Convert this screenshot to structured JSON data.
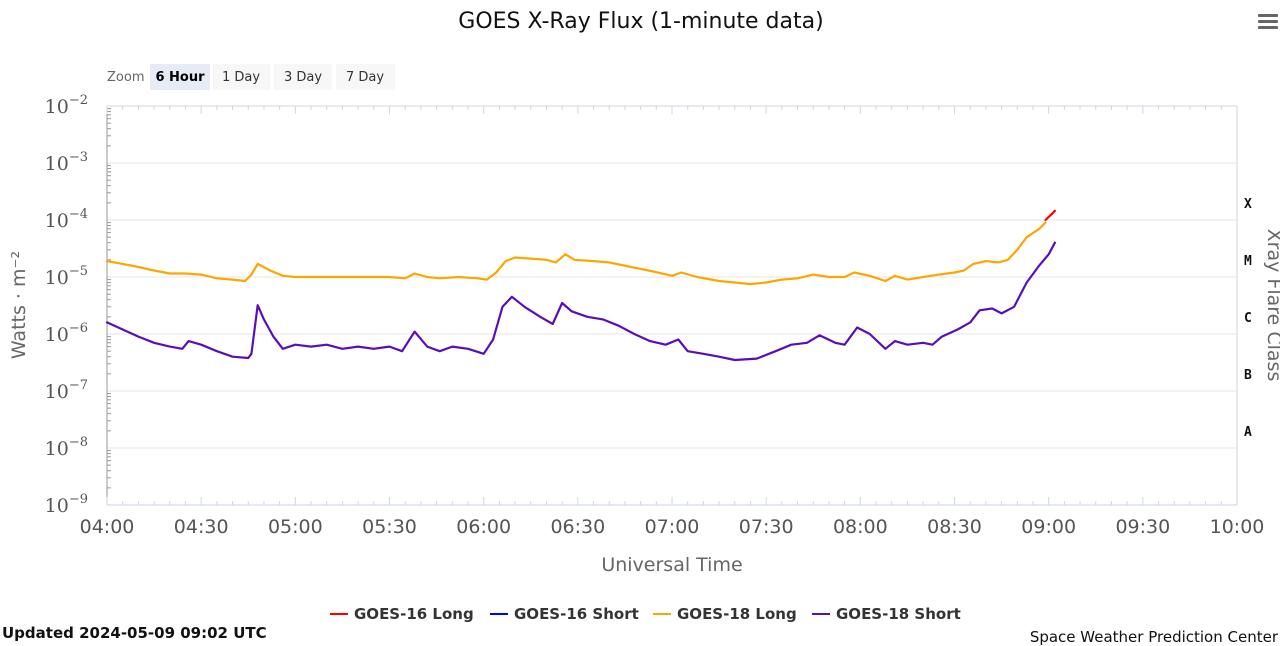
{
  "header": {
    "title": "GOES X-Ray Flux (1-minute data)"
  },
  "zoom": {
    "label": "Zoom",
    "buttons": [
      {
        "label": "6 Hour",
        "active": true
      },
      {
        "label": "1 Day",
        "active": false
      },
      {
        "label": "3 Day",
        "active": false
      },
      {
        "label": "7 Day",
        "active": false
      }
    ]
  },
  "footer": {
    "updated": "Updated 2024-05-09 09:02 UTC",
    "credit": "Space Weather Prediction Center"
  },
  "icons": {
    "menu": "hamburger-menu-icon"
  },
  "colors": {
    "goes16_long": "#ff0000",
    "goes16_short": "#0000ff",
    "goes18_long": "#ffa500",
    "goes18_short": "#5a0fb4",
    "grid": "#e6e6e6",
    "axis": "#ccd6eb"
  },
  "chart_data": {
    "type": "line",
    "title": "GOES X-Ray Flux (1-minute data)",
    "xlabel": "Universal Time",
    "ylabel": "Watts · m⁻²",
    "ylabel2": "Xray Flare Class",
    "y_scale": "log",
    "xlim": [
      "04:00",
      "10:00"
    ],
    "ylim": [
      1e-09,
      0.01
    ],
    "x_ticks": [
      "04:00",
      "04:30",
      "05:00",
      "05:30",
      "06:00",
      "06:30",
      "07:00",
      "07:30",
      "08:00",
      "08:30",
      "09:00",
      "09:30",
      "10:00"
    ],
    "y_ticks": [
      {
        "base": "10",
        "exp": "−2",
        "value": 0.01
      },
      {
        "base": "10",
        "exp": "−3",
        "value": 0.001
      },
      {
        "base": "10",
        "exp": "−4",
        "value": 0.0001
      },
      {
        "base": "10",
        "exp": "−5",
        "value": 1e-05
      },
      {
        "base": "10",
        "exp": "−6",
        "value": 1e-06
      },
      {
        "base": "10",
        "exp": "−7",
        "value": 1e-07
      },
      {
        "base": "10",
        "exp": "−8",
        "value": 1e-08
      },
      {
        "base": "10",
        "exp": "−9",
        "value": 1e-09
      }
    ],
    "flare_classes": [
      {
        "label": "X",
        "value": 0.0002
      },
      {
        "label": "M",
        "value": 2e-05
      },
      {
        "label": "C",
        "value": 2e-06
      },
      {
        "label": "B",
        "value": 2e-07
      },
      {
        "label": "A",
        "value": 2e-08
      }
    ],
    "grid": true,
    "legend_position": "bottom-center",
    "series": [
      {
        "name": "GOES-16 Long",
        "color": "#ff0000",
        "points": [
          [
            "08:59",
            0.0001
          ],
          [
            "09:01",
            0.000128
          ],
          [
            "09:02",
            0.000145
          ]
        ]
      },
      {
        "name": "GOES-16 Short",
        "color": "#0000ff",
        "points": []
      },
      {
        "name": "GOES-18 Long",
        "color": "#ffa500",
        "points": [
          [
            "04:00",
            1.9e-05
          ],
          [
            "04:05",
            1.7e-05
          ],
          [
            "04:10",
            1.5e-05
          ],
          [
            "04:15",
            1.3e-05
          ],
          [
            "04:20",
            1.15e-05
          ],
          [
            "04:25",
            1.15e-05
          ],
          [
            "04:30",
            1.1e-05
          ],
          [
            "04:35",
            9.5e-06
          ],
          [
            "04:40",
            9e-06
          ],
          [
            "04:44",
            8.5e-06
          ],
          [
            "04:46",
            1.1e-05
          ],
          [
            "04:48",
            1.7e-05
          ],
          [
            "04:52",
            1.3e-05
          ],
          [
            "04:56",
            1.05e-05
          ],
          [
            "05:00",
            1e-05
          ],
          [
            "05:10",
            1e-05
          ],
          [
            "05:20",
            1e-05
          ],
          [
            "05:30",
            1e-05
          ],
          [
            "05:35",
            9.5e-06
          ],
          [
            "05:38",
            1.15e-05
          ],
          [
            "05:42",
            1e-05
          ],
          [
            "05:46",
            9.5e-06
          ],
          [
            "05:52",
            1e-05
          ],
          [
            "05:58",
            9.5e-06
          ],
          [
            "06:01",
            9e-06
          ],
          [
            "06:04",
            1.2e-05
          ],
          [
            "06:07",
            1.9e-05
          ],
          [
            "06:10",
            2.2e-05
          ],
          [
            "06:15",
            2.1e-05
          ],
          [
            "06:20",
            2e-05
          ],
          [
            "06:23",
            1.8e-05
          ],
          [
            "06:26",
            2.5e-05
          ],
          [
            "06:29",
            2e-05
          ],
          [
            "06:35",
            1.9e-05
          ],
          [
            "06:40",
            1.8e-05
          ],
          [
            "06:47",
            1.5e-05
          ],
          [
            "06:54",
            1.25e-05
          ],
          [
            "07:00",
            1.05e-05
          ],
          [
            "07:03",
            1.2e-05
          ],
          [
            "07:08",
            1e-05
          ],
          [
            "07:15",
            8.5e-06
          ],
          [
            "07:20",
            8e-06
          ],
          [
            "07:25",
            7.5e-06
          ],
          [
            "07:30",
            8e-06
          ],
          [
            "07:35",
            9e-06
          ],
          [
            "07:40",
            9.5e-06
          ],
          [
            "07:45",
            1.1e-05
          ],
          [
            "07:50",
            1e-05
          ],
          [
            "07:55",
            1e-05
          ],
          [
            "07:58",
            1.2e-05
          ],
          [
            "08:03",
            1.05e-05
          ],
          [
            "08:08",
            8.5e-06
          ],
          [
            "08:11",
            1.05e-05
          ],
          [
            "08:15",
            9e-06
          ],
          [
            "08:20",
            1e-05
          ],
          [
            "08:25",
            1.1e-05
          ],
          [
            "08:30",
            1.2e-05
          ],
          [
            "08:33",
            1.3e-05
          ],
          [
            "08:36",
            1.7e-05
          ],
          [
            "08:40",
            1.9e-05
          ],
          [
            "08:44",
            1.8e-05
          ],
          [
            "08:47",
            2e-05
          ],
          [
            "08:50",
            3e-05
          ],
          [
            "08:53",
            5e-05
          ],
          [
            "08:57",
            7e-05
          ],
          [
            "08:59",
            9e-05
          ]
        ]
      },
      {
        "name": "GOES-18 Short",
        "color": "#5a0fb4",
        "points": [
          [
            "04:00",
            1.6e-06
          ],
          [
            "04:05",
            1.2e-06
          ],
          [
            "04:10",
            9e-07
          ],
          [
            "04:15",
            7e-07
          ],
          [
            "04:20",
            6e-07
          ],
          [
            "04:24",
            5.5e-07
          ],
          [
            "04:26",
            7.5e-07
          ],
          [
            "04:30",
            6.5e-07
          ],
          [
            "04:35",
            5e-07
          ],
          [
            "04:40",
            4e-07
          ],
          [
            "04:45",
            3.8e-07
          ],
          [
            "04:46",
            4.5e-07
          ],
          [
            "04:48",
            3.2e-06
          ],
          [
            "04:50",
            1.8e-06
          ],
          [
            "04:53",
            9e-07
          ],
          [
            "04:56",
            5.5e-07
          ],
          [
            "05:00",
            6.5e-07
          ],
          [
            "05:05",
            6e-07
          ],
          [
            "05:10",
            6.5e-07
          ],
          [
            "05:15",
            5.5e-07
          ],
          [
            "05:20",
            6e-07
          ],
          [
            "05:25",
            5.5e-07
          ],
          [
            "05:30",
            6e-07
          ],
          [
            "05:34",
            5e-07
          ],
          [
            "05:38",
            1.1e-06
          ],
          [
            "05:42",
            6e-07
          ],
          [
            "05:46",
            5e-07
          ],
          [
            "05:50",
            6e-07
          ],
          [
            "05:55",
            5.5e-07
          ],
          [
            "06:00",
            4.5e-07
          ],
          [
            "06:03",
            8e-07
          ],
          [
            "06:06",
            3e-06
          ],
          [
            "06:09",
            4.5e-06
          ],
          [
            "06:13",
            3e-06
          ],
          [
            "06:18",
            2e-06
          ],
          [
            "06:22",
            1.5e-06
          ],
          [
            "06:25",
            3.5e-06
          ],
          [
            "06:28",
            2.5e-06
          ],
          [
            "06:33",
            2e-06
          ],
          [
            "06:38",
            1.8e-06
          ],
          [
            "06:43",
            1.4e-06
          ],
          [
            "06:48",
            1e-06
          ],
          [
            "06:53",
            7.5e-07
          ],
          [
            "06:58",
            6.5e-07
          ],
          [
            "07:02",
            8e-07
          ],
          [
            "07:05",
            5e-07
          ],
          [
            "07:10",
            4.5e-07
          ],
          [
            "07:15",
            4e-07
          ],
          [
            "07:20",
            3.5e-07
          ],
          [
            "07:27",
            3.7e-07
          ],
          [
            "07:33",
            5e-07
          ],
          [
            "07:38",
            6.5e-07
          ],
          [
            "07:43",
            7e-07
          ],
          [
            "07:47",
            9.5e-07
          ],
          [
            "07:52",
            7e-07
          ],
          [
            "07:55",
            6.5e-07
          ],
          [
            "07:59",
            1.3e-06
          ],
          [
            "08:03",
            1e-06
          ],
          [
            "08:08",
            5.5e-07
          ],
          [
            "08:11",
            7.5e-07
          ],
          [
            "08:15",
            6.5e-07
          ],
          [
            "08:20",
            7e-07
          ],
          [
            "08:23",
            6.5e-07
          ],
          [
            "08:26",
            9e-07
          ],
          [
            "08:31",
            1.2e-06
          ],
          [
            "08:35",
            1.6e-06
          ],
          [
            "08:38",
            2.6e-06
          ],
          [
            "08:42",
            2.8e-06
          ],
          [
            "08:45",
            2.3e-06
          ],
          [
            "08:49",
            3e-06
          ],
          [
            "08:53",
            8e-06
          ],
          [
            "08:57",
            1.6e-05
          ],
          [
            "09:00",
            2.5e-05
          ],
          [
            "09:02",
            4e-05
          ]
        ]
      }
    ]
  }
}
